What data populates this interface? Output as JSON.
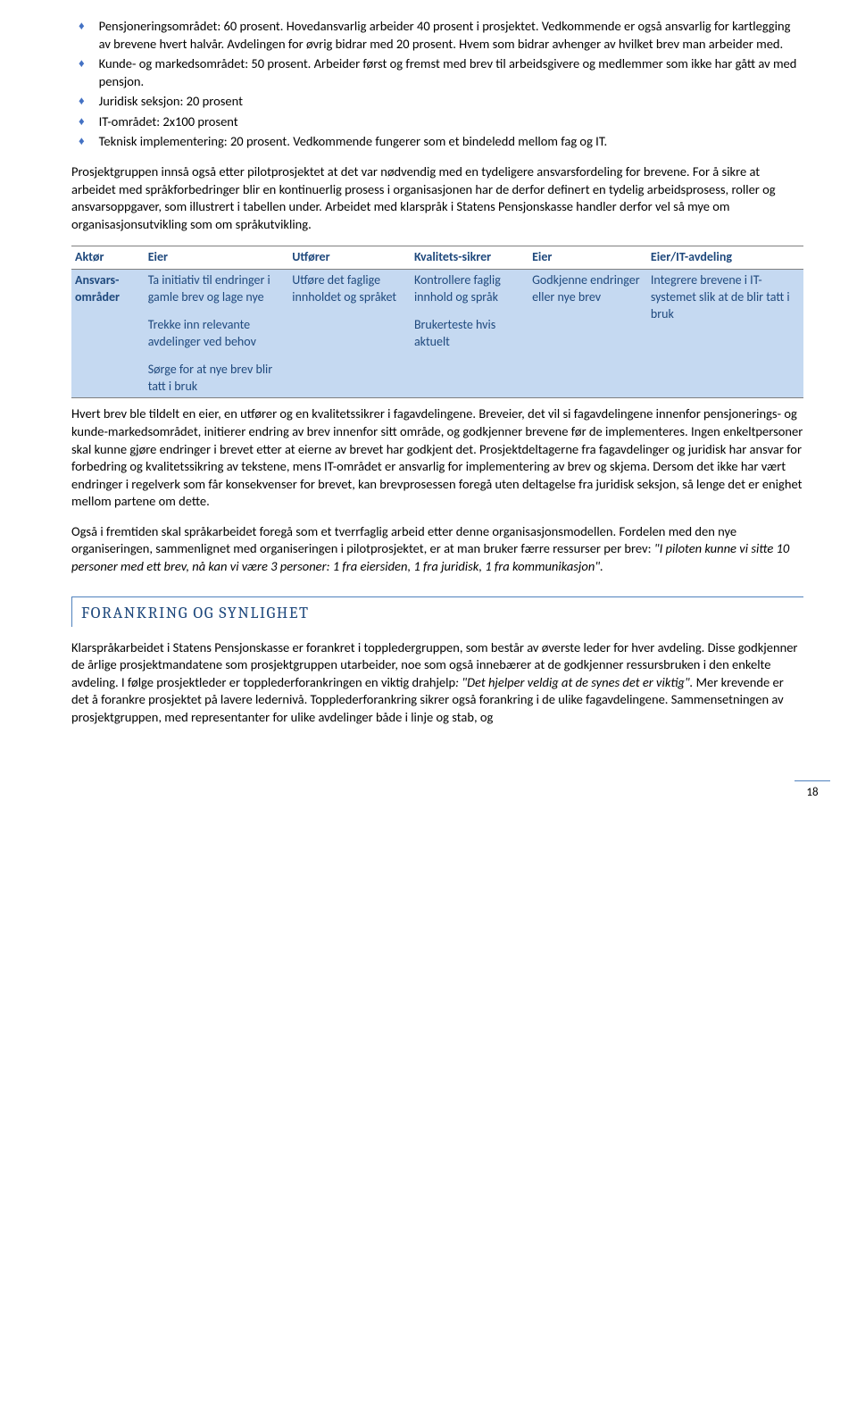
{
  "bullets": [
    "Pensjoneringsområdet: 60 prosent. Hovedansvarlig arbeider 40 prosent i prosjektet. Vedkommende er også ansvarlig for kartlegging av brevene hvert halvår. Avdelingen for øvrig bidrar med 20 prosent. Hvem som bidrar avhenger av hvilket brev man arbeider med.",
    "Kunde- og markedsområdet: 50 prosent. Arbeider først og fremst med brev til arbeidsgivere og medlemmer som ikke har gått av med pensjon.",
    "Juridisk seksjon: 20 prosent",
    "IT-området: 2x100 prosent",
    "Teknisk implementering: 20 prosent. Vedkommende fungerer som et bindeledd mellom fag og IT."
  ],
  "para1": "Prosjektgruppen innså også etter pilotprosjektet at det var nødvendig med en tydeligere ansvarsfordeling for brevene. For å sikre at arbeidet med språkforbedringer blir en kontinuerlig prosess i organisasjonen har de derfor definert en tydelig arbeidsprosess, roller og ansvarsoppgaver, som illustrert i tabellen under. Arbeidet med klarspråk i Statens Pensjonskasse handler derfor vel så mye om organisasjonsutvikling som om språkutvikling.",
  "table": {
    "headers": [
      "Aktør",
      "Eier",
      "Utfører",
      "Kvalitets-sikrer",
      "Eier",
      "Eier/IT-avdeling"
    ],
    "row_label": "Ansvars-områder",
    "col1": [
      "Ta initiativ til endringer i gamle brev og lage nye",
      "Trekke inn relevante avdelinger ved behov",
      "Sørge for at nye brev blir tatt i bruk"
    ],
    "col2": "Utføre det faglige innholdet og språket",
    "col3": [
      "Kontrollere faglig innhold og språk",
      "Brukerteste hvis aktuelt"
    ],
    "col4": "Godkjenne endringer eller nye brev",
    "col5": "Integrere brevene i IT-systemet slik at de blir tatt i bruk"
  },
  "para2": "Hvert brev ble tildelt en eier, en utfører og en kvalitetssikrer i fagavdelingene. Breveier, det vil si fagavdelingene innenfor pensjonerings- og kunde-markedsområdet, initierer endring av brev innenfor sitt område, og godkjenner brevene før de implementeres. Ingen enkeltpersoner skal kunne gjøre endringer i brevet etter at eierne av brevet har godkjent det. Prosjektdeltagerne fra fagavdelinger og juridisk har ansvar for forbedring og kvalitetssikring av tekstene, mens IT-området er ansvarlig for implementering av brev og skjema. Dersom det ikke har vært endringer i regelverk som får konsekvenser for brevet, kan brevprosessen foregå uten deltagelse fra juridisk seksjon, så lenge det er enighet mellom partene om dette.",
  "para3_a": "Også i fremtiden skal språkarbeidet foregå som et tverrfaglig arbeid etter denne organisasjonsmodellen. Fordelen med den nye organiseringen, sammenlignet med organiseringen i pilotprosjektet, er at man bruker færre ressurser per brev: ",
  "para3_i": "\"I piloten kunne vi sitte 10 personer med ett brev, nå kan vi være 3 personer: 1 fra eiersiden, 1 fra juridisk, 1 fra kommunikasjon\".",
  "section_title": "FORANKRING OG SYNLIGHET",
  "para4_a": "Klarspråkarbeidet i Statens Pensjonskasse er forankret i toppledergruppen, som består av øverste leder for hver avdeling. Disse godkjenner de årlige prosjektmandatene som prosjektgruppen utarbeider, noe som også innebærer at de godkjenner ressursbruken i den enkelte avdeling. I følge prosjektleder er topplederforankringen en viktig drahjelp",
  "para4_i": ": \"Det hjelper veldig at de synes det er viktig\". ",
  "para4_b": "Mer krevende er det å forankre prosjektet på lavere ledernivå. Topplederforankring sikrer også forankring i de ulike fagavdelingene. Sammensetningen av prosjektgruppen, med representanter for ulike avdelinger både i linje og stab, og",
  "page_number": "18"
}
